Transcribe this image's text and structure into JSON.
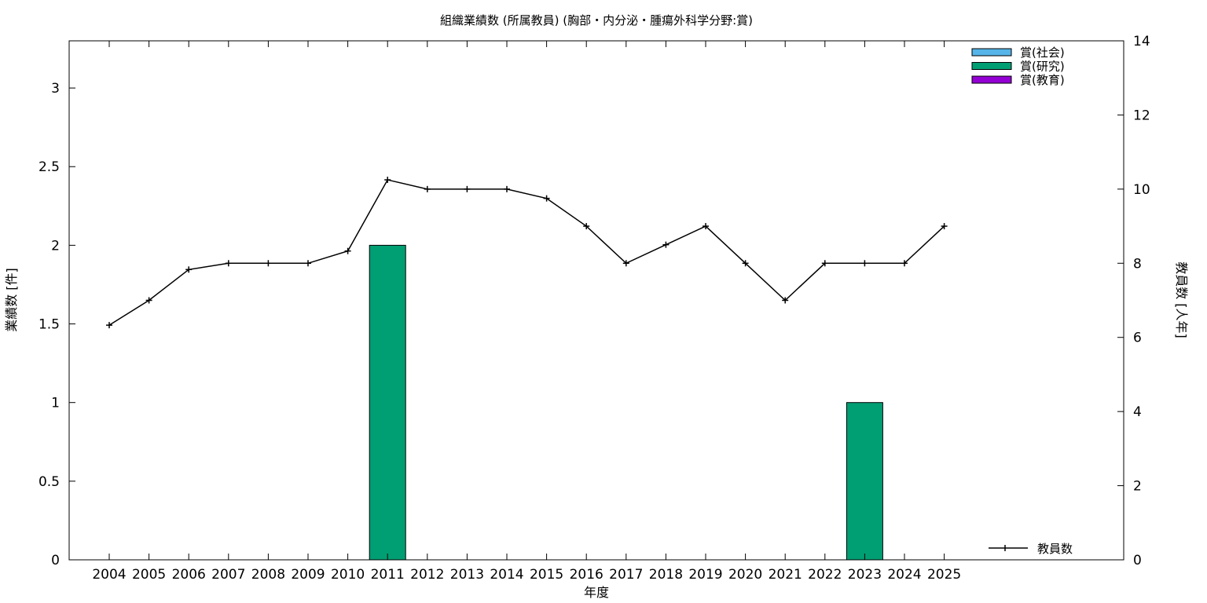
{
  "chart_data": {
    "type": "bar",
    "title": "組織業績数 (所属教員) (胸部・内分泌・腫瘍外科学分野:賞)",
    "xlabel": "年度",
    "ylabel": "業績数 [件]",
    "y2label": "教員数 [人年]",
    "categories": [
      "2004",
      "2005",
      "2006",
      "2007",
      "2008",
      "2009",
      "2010",
      "2011",
      "2012",
      "2013",
      "2014",
      "2015",
      "2016",
      "2017",
      "2018",
      "2019",
      "2020",
      "2021",
      "2022",
      "2023",
      "2024",
      "2025"
    ],
    "ylim": [
      0,
      3.3
    ],
    "yticks": [
      "0",
      "0.5",
      "1",
      "1.5",
      "2",
      "2.5",
      "3"
    ],
    "y2lim": [
      0,
      14
    ],
    "y2ticks": [
      "0",
      "2",
      "4",
      "6",
      "8",
      "10",
      "12",
      "14"
    ],
    "bar_series": [
      {
        "name": "賞(社会)",
        "color": "#56b4e9",
        "values": [
          0,
          0,
          0,
          0,
          0,
          0,
          0,
          0,
          0,
          0,
          0,
          0,
          0,
          0,
          0,
          0,
          0,
          0,
          0,
          0,
          0,
          0
        ]
      },
      {
        "name": "賞(研究)",
        "color": "#009e73",
        "values": [
          0,
          0,
          0,
          0,
          0,
          0,
          0,
          2,
          0,
          0,
          0,
          0,
          0,
          0,
          0,
          0,
          0,
          0,
          0,
          1,
          0,
          0
        ]
      },
      {
        "name": "賞(教育)",
        "color": "#9400d3",
        "values": [
          0,
          0,
          0,
          0,
          0,
          0,
          0,
          0,
          0,
          0,
          0,
          0,
          0,
          0,
          0,
          0,
          0,
          0,
          0,
          0,
          0,
          0
        ]
      }
    ],
    "line_series": {
      "name": "教員数",
      "color": "#000000",
      "axis": "y2",
      "values": [
        6.33,
        7.0,
        7.83,
        8.0,
        8.0,
        8.0,
        8.33,
        10.25,
        10.0,
        10.0,
        10.0,
        9.75,
        9.0,
        8.0,
        8.5,
        9.0,
        8.0,
        7.0,
        8.0,
        8.0,
        8.0,
        9.0
      ]
    },
    "bar_legend_placement": "top-right",
    "line_legend_placement": "bottom-right",
    "grid": false
  }
}
